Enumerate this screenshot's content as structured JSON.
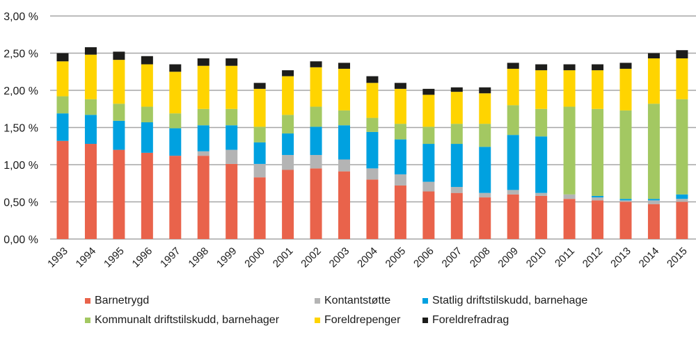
{
  "chart_data": {
    "type": "bar",
    "stacked": true,
    "title": "",
    "xlabel": "",
    "ylabel": "",
    "ylim": [
      0,
      3.0
    ],
    "y_ticks": [
      "0,00 %",
      "0,50 %",
      "1,00 %",
      "1,50 %",
      "2,00 %",
      "2,50 %",
      "3,00 %"
    ],
    "y_tick_values": [
      0,
      0.5,
      1.0,
      1.5,
      2.0,
      2.5,
      3.0
    ],
    "grid": true,
    "legend_position": "bottom",
    "categories": [
      "1993",
      "1994",
      "1995",
      "1996",
      "1997",
      "1998",
      "1999",
      "2000",
      "2001",
      "2002",
      "2003",
      "2004",
      "2005",
      "2006",
      "2007",
      "2008",
      "2009",
      "2010",
      "2011",
      "2012",
      "2013",
      "2014",
      "2015"
    ],
    "series": [
      {
        "name": "Barnetrygd",
        "color": "#e9634b",
        "values": [
          1.32,
          1.28,
          1.2,
          1.16,
          1.12,
          1.12,
          1.01,
          0.83,
          0.93,
          0.95,
          0.91,
          0.8,
          0.72,
          0.64,
          0.62,
          0.56,
          0.6,
          0.58,
          0.54,
          0.52,
          0.5,
          0.47,
          0.5
        ]
      },
      {
        "name": "Kontantstøtte",
        "color": "#b4b4b4",
        "values": [
          0.0,
          0.0,
          0.0,
          0.0,
          0.0,
          0.06,
          0.19,
          0.18,
          0.2,
          0.18,
          0.16,
          0.15,
          0.15,
          0.13,
          0.08,
          0.06,
          0.06,
          0.04,
          0.06,
          0.04,
          0.02,
          0.05,
          0.04
        ]
      },
      {
        "name": "Statlig driftstilskudd, barnehage",
        "color": "#00a1e0",
        "values": [
          0.37,
          0.39,
          0.39,
          0.41,
          0.37,
          0.35,
          0.33,
          0.29,
          0.29,
          0.38,
          0.46,
          0.49,
          0.47,
          0.51,
          0.58,
          0.62,
          0.74,
          0.76,
          0.0,
          0.02,
          0.02,
          0.02,
          0.06
        ]
      },
      {
        "name": "Kommunalt driftstilskudd, barnehager",
        "color": "#a3c862",
        "values": [
          0.23,
          0.21,
          0.23,
          0.21,
          0.2,
          0.22,
          0.22,
          0.21,
          0.25,
          0.27,
          0.2,
          0.19,
          0.21,
          0.23,
          0.27,
          0.31,
          0.4,
          0.37,
          1.18,
          1.17,
          1.19,
          1.28,
          1.28
        ]
      },
      {
        "name": "Foreldrepenger",
        "color": "#ffd400",
        "values": [
          0.47,
          0.6,
          0.59,
          0.57,
          0.56,
          0.58,
          0.58,
          0.51,
          0.52,
          0.53,
          0.56,
          0.47,
          0.47,
          0.43,
          0.43,
          0.41,
          0.49,
          0.52,
          0.49,
          0.52,
          0.56,
          0.61,
          0.55
        ]
      },
      {
        "name": "Foreldrefradrag",
        "color": "#1d1d1b",
        "values": [
          0.11,
          0.1,
          0.11,
          0.11,
          0.1,
          0.1,
          0.1,
          0.08,
          0.08,
          0.08,
          0.08,
          0.09,
          0.08,
          0.08,
          0.06,
          0.08,
          0.08,
          0.08,
          0.08,
          0.08,
          0.08,
          0.07,
          0.11
        ]
      }
    ]
  },
  "legend": {
    "items": [
      {
        "label": "Barnetrygd",
        "color": "#e9634b"
      },
      {
        "label": "Kontantstøtte",
        "color": "#b4b4b4"
      },
      {
        "label": "Statlig driftstilskudd, barnehage",
        "color": "#00a1e0"
      },
      {
        "label": "Kommunalt driftstilskudd, barnehager",
        "color": "#a3c862"
      },
      {
        "label": "Foreldrepenger",
        "color": "#ffd400"
      },
      {
        "label": "Foreldrefradrag",
        "color": "#1d1d1b"
      }
    ]
  }
}
